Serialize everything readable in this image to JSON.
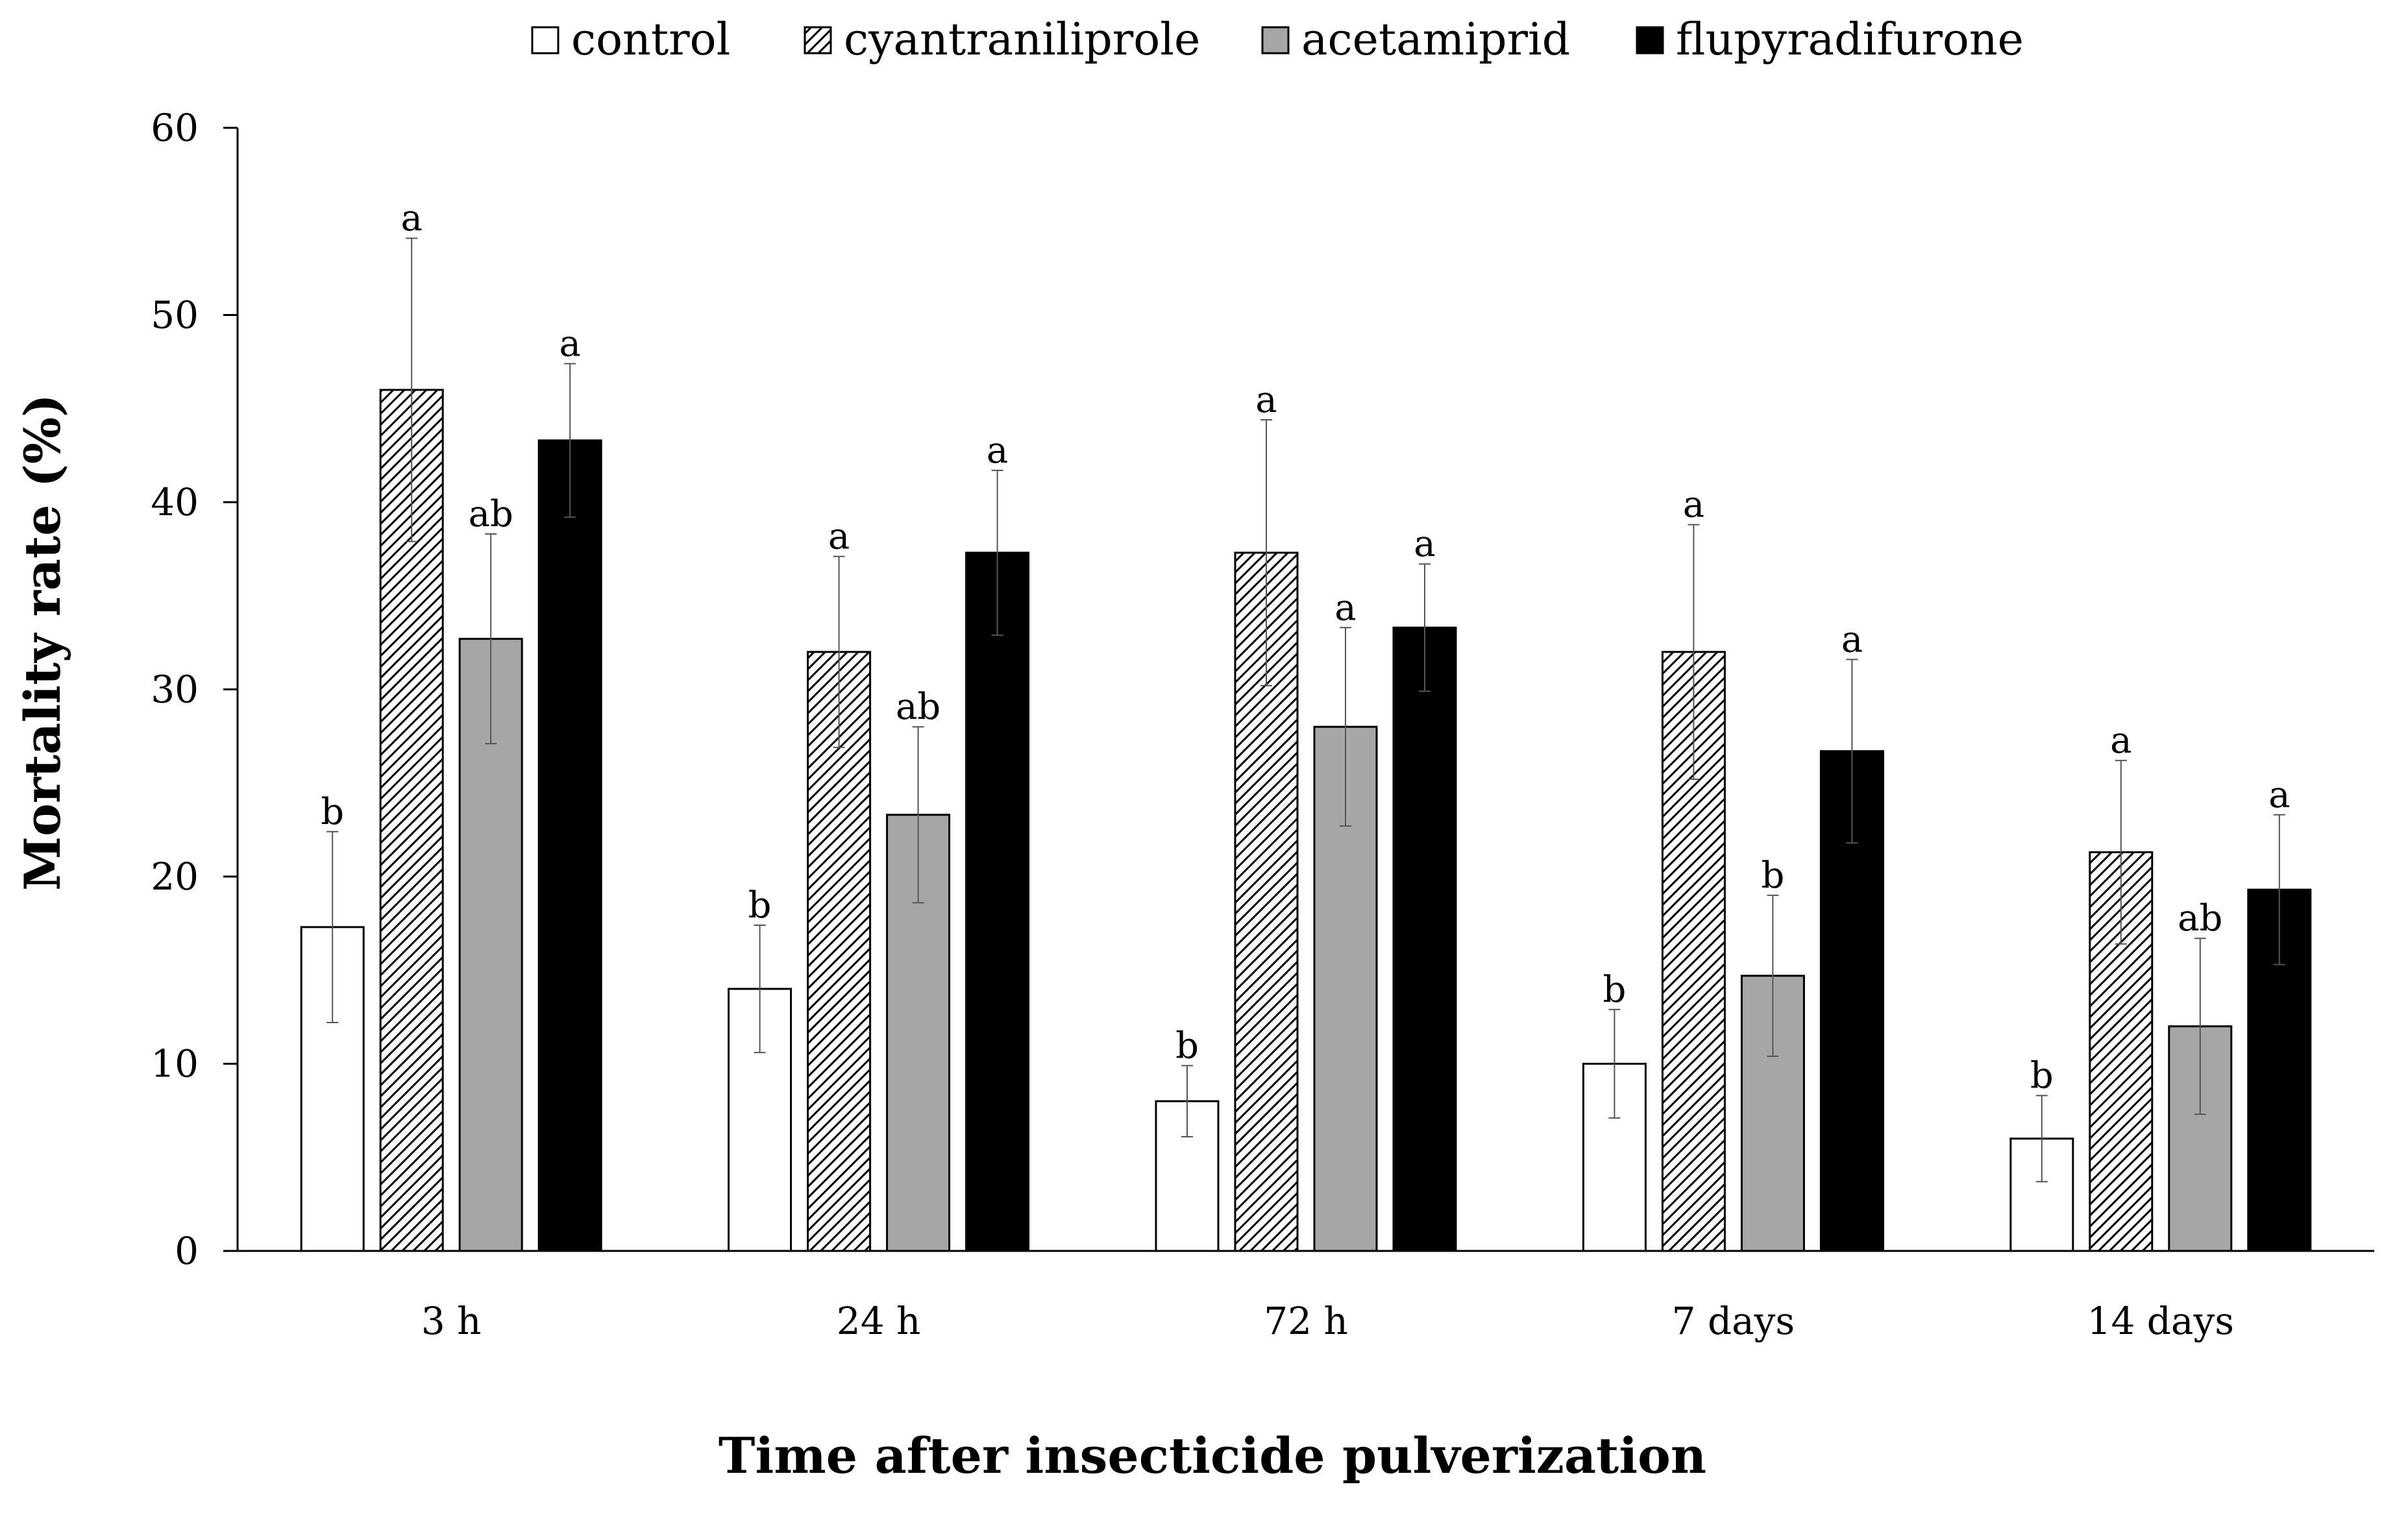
{
  "chart_data": {
    "type": "bar",
    "title": "",
    "xlabel": "Time after insecticide pulverization",
    "ylabel": "Mortality rate (%)",
    "ylim": [
      0,
      60
    ],
    "yticks": [
      0,
      10,
      20,
      30,
      40,
      50,
      60
    ],
    "grid": false,
    "legend_position": "top",
    "categories": [
      "3 h",
      "24 h",
      "72 h",
      "7 days",
      "14 days"
    ],
    "series": [
      {
        "name": "control",
        "fill": "white",
        "color": "#ffffff",
        "values": [
          17.3,
          14.0,
          8.0,
          10.0,
          6.0
        ],
        "errors": [
          5.1,
          3.4,
          1.9,
          2.9,
          2.3
        ],
        "letters": [
          "b",
          "b",
          "b",
          "b",
          "b"
        ]
      },
      {
        "name": "cyantraniliprole",
        "fill": "hatched",
        "color": "#000000",
        "values": [
          46.0,
          32.0,
          37.3,
          32.0,
          21.3
        ],
        "errors": [
          8.1,
          5.1,
          7.1,
          6.8,
          4.9
        ],
        "letters": [
          "a",
          "a",
          "a",
          "a",
          "a"
        ]
      },
      {
        "name": "acetamiprid",
        "fill": "gray",
        "color": "#a6a6a6",
        "values": [
          32.7,
          23.3,
          28.0,
          14.7,
          12.0
        ],
        "errors": [
          5.6,
          4.7,
          5.3,
          4.3,
          4.7
        ],
        "letters": [
          "ab",
          "ab",
          "a",
          "b",
          "ab"
        ]
      },
      {
        "name": "flupyradifurone",
        "fill": "black",
        "color": "#000000",
        "values": [
          43.3,
          37.3,
          33.3,
          26.7,
          19.3
        ],
        "errors": [
          4.1,
          4.4,
          3.4,
          4.9,
          4.0
        ],
        "letters": [
          "a",
          "a",
          "a",
          "a",
          "a"
        ]
      }
    ]
  }
}
